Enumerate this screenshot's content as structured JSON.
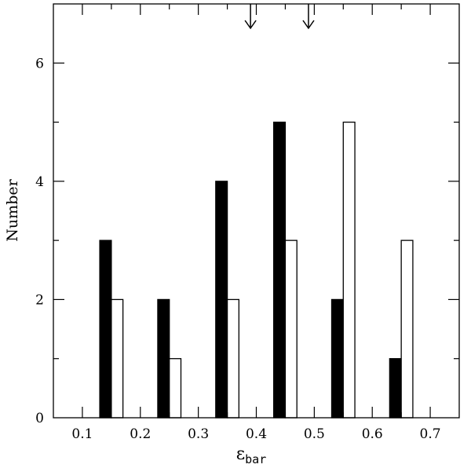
{
  "chart_data": {
    "type": "bar",
    "xlabel_symbol": "ε",
    "xlabel_subscript": "bar",
    "ylabel": "Number",
    "xlim": [
      0.05,
      0.75
    ],
    "ylim": [
      0,
      7
    ],
    "x_ticks": [
      "0.1",
      "0.2",
      "0.3",
      "0.4",
      "0.5",
      "0.6",
      "0.7"
    ],
    "y_ticks": [
      "0",
      "2",
      "4",
      "6"
    ],
    "bar_width": 0.02,
    "series": [
      {
        "fill": "#000000",
        "x": [
          0.14,
          0.24,
          0.34,
          0.44,
          0.54,
          0.64
        ],
        "values": [
          3,
          2,
          4,
          5,
          2,
          1
        ]
      },
      {
        "fill": "#ffffff",
        "x": [
          0.16,
          0.26,
          0.36,
          0.46,
          0.56,
          0.66
        ],
        "values": [
          2,
          1,
          2,
          3,
          5,
          3
        ]
      }
    ],
    "arrows_x": [
      0.39,
      0.49
    ],
    "grid": false,
    "legend": "none"
  }
}
